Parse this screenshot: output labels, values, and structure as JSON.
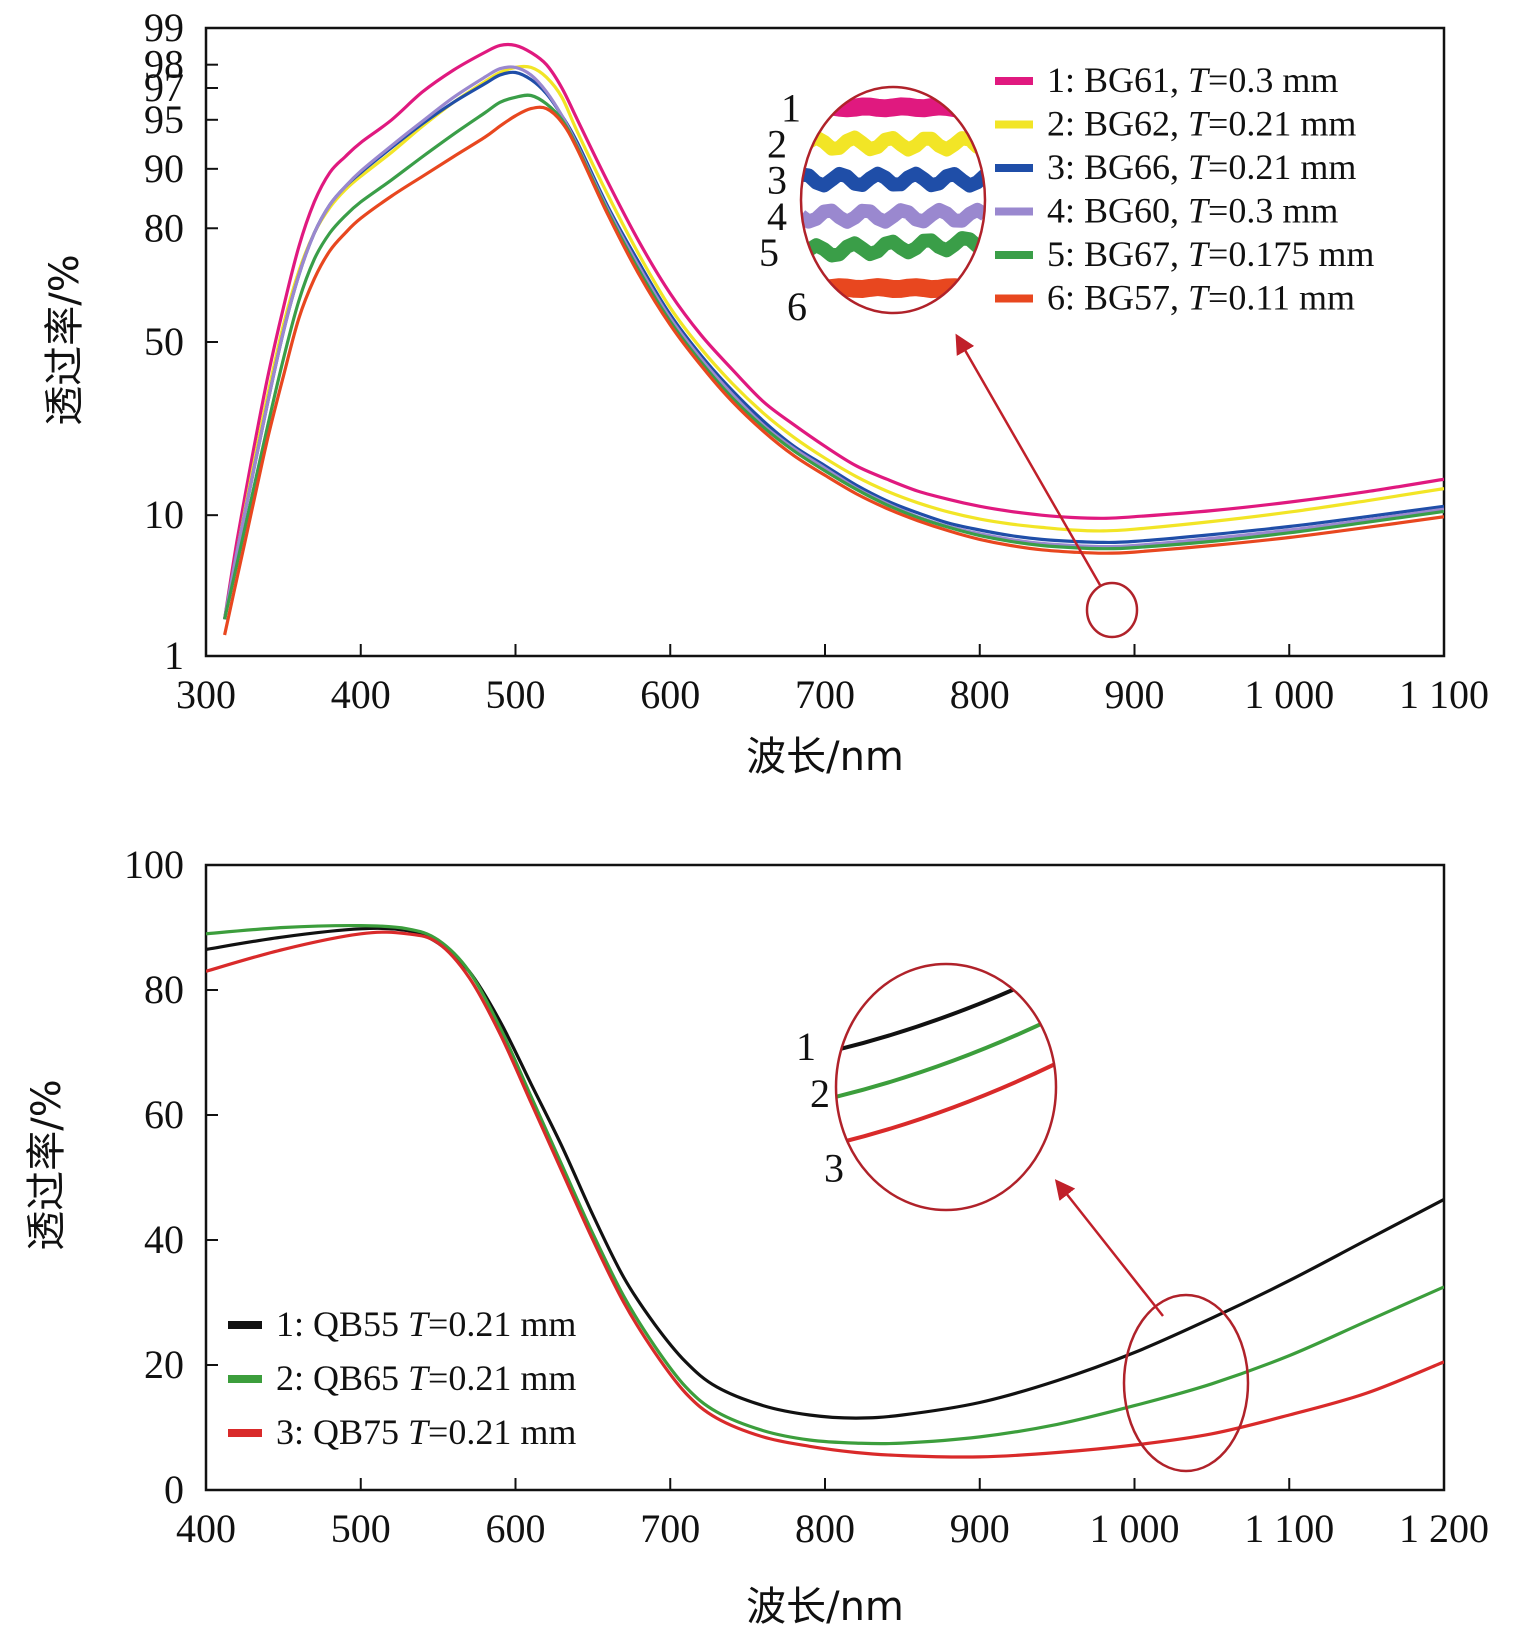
{
  "chart_data": [
    {
      "type": "line",
      "xlabel": "波长/nm",
      "ylabel": "透过率/%",
      "xlim": [
        300,
        1100
      ],
      "xticks": [
        300,
        400,
        500,
        600,
        700,
        800,
        900,
        1000,
        1100
      ],
      "xtick_labels": [
        "300",
        "400",
        "500",
        "600",
        "700",
        "800",
        "900",
        "1 000",
        "1 100"
      ],
      "ylim": [
        1,
        99
      ],
      "y_scale": "probability",
      "yticks": [
        1,
        10,
        50,
        80,
        90,
        95,
        97,
        98,
        99
      ],
      "ytick_labels": [
        "1",
        "10",
        "50",
        "80",
        "90",
        "95",
        "97",
        "98",
        "99"
      ],
      "grid": false,
      "legend_position": "top-right",
      "inset": {
        "type": "magnified-circle",
        "labels": [
          "1",
          "2",
          "3",
          "4",
          "5",
          "6"
        ],
        "source_x": 885,
        "source_y": 8
      },
      "series": [
        {
          "name": "1: BG61, T=0.3 mm",
          "legend_label": {
            "pre": "1: BG61, ",
            "italic": "T",
            "post": "=0.3 mm"
          },
          "color": "#e0197f",
          "x": [
            312,
            320,
            330,
            340,
            350,
            360,
            370,
            380,
            390,
            400,
            420,
            440,
            460,
            480,
            490,
            500,
            510,
            520,
            530,
            540,
            560,
            580,
            600,
            620,
            640,
            660,
            680,
            700,
            720,
            740,
            760,
            780,
            800,
            820,
            840,
            860,
            880,
            900,
            950,
            1000,
            1050,
            1100
          ],
          "y": [
            2,
            7,
            20,
            40,
            60,
            76,
            85,
            89.5,
            91.5,
            93,
            95,
            96.8,
            97.8,
            98.4,
            98.6,
            98.6,
            98.4,
            98,
            97,
            95,
            88,
            77,
            64,
            52,
            42,
            33,
            27,
            22,
            18,
            15.5,
            13.5,
            12.2,
            11.2,
            10.5,
            10,
            9.7,
            9.6,
            9.8,
            10.6,
            11.8,
            13.4,
            15.5
          ]
        },
        {
          "name": "2: BG62, T=0.21 mm",
          "legend_label": {
            "pre": "2: BG62, ",
            "italic": "T",
            "post": "=0.21 mm"
          },
          "color": "#f2e526",
          "x": [
            312,
            320,
            330,
            340,
            350,
            360,
            370,
            380,
            390,
            400,
            420,
            440,
            460,
            480,
            490,
            500,
            510,
            520,
            530,
            540,
            560,
            580,
            600,
            620,
            640,
            660,
            680,
            700,
            720,
            740,
            760,
            780,
            800,
            820,
            840,
            860,
            880,
            900,
            950,
            1000,
            1050,
            1100
          ],
          "y": [
            2,
            6,
            17,
            35,
            55,
            70,
            79,
            84,
            87,
            89,
            92,
            94.5,
            96.2,
            97.3,
            97.7,
            97.9,
            97.9,
            97.5,
            96.5,
            94,
            86,
            74,
            60,
            48,
            38,
            30,
            24,
            19.5,
            16,
            13.5,
            11.7,
            10.4,
            9.5,
            8.9,
            8.5,
            8.2,
            8.1,
            8.3,
            9.2,
            10.4,
            12,
            13.9
          ]
        },
        {
          "name": "3: BG66, T=0.21 mm",
          "legend_label": {
            "pre": "3: BG66, ",
            "italic": "T",
            "post": "=0.21 mm"
          },
          "color": "#1f4ea8",
          "x": [
            312,
            320,
            330,
            340,
            350,
            360,
            370,
            380,
            390,
            400,
            420,
            440,
            460,
            480,
            490,
            500,
            510,
            520,
            530,
            540,
            560,
            580,
            600,
            620,
            640,
            660,
            680,
            700,
            720,
            740,
            760,
            780,
            800,
            820,
            840,
            860,
            880,
            900,
            950,
            1000,
            1050,
            1100
          ],
          "y": [
            2,
            6,
            16,
            33,
            53,
            69,
            79,
            84.5,
            87.5,
            89.5,
            92.5,
            94.7,
            96.2,
            97.2,
            97.6,
            97.7,
            97.4,
            96.7,
            95.3,
            93,
            84,
            72,
            58,
            46,
            36,
            28,
            22,
            18,
            14.5,
            12,
            10.3,
            9,
            8.2,
            7.6,
            7.2,
            7,
            6.9,
            7,
            7.7,
            8.6,
            9.8,
            11.2
          ]
        },
        {
          "name": "4: BG60, T=0.3 mm",
          "legend_label": {
            "pre": "4: BG60, ",
            "italic": "T",
            "post": "=0.3 mm"
          },
          "color": "#9a88cf",
          "x": [
            312,
            320,
            330,
            340,
            350,
            360,
            370,
            380,
            390,
            400,
            420,
            440,
            460,
            480,
            490,
            500,
            510,
            520,
            530,
            540,
            560,
            580,
            600,
            620,
            640,
            660,
            680,
            700,
            720,
            740,
            760,
            780,
            800,
            820,
            840,
            860,
            880,
            900,
            950,
            1000,
            1050,
            1100
          ],
          "y": [
            2,
            6,
            16,
            33,
            53,
            69,
            79,
            84.5,
            87.5,
            89.7,
            92.7,
            94.9,
            96.5,
            97.5,
            97.85,
            97.9,
            97.6,
            96.8,
            95.3,
            92.7,
            83.5,
            71,
            57,
            45,
            35,
            27,
            21.5,
            17.5,
            14,
            11.6,
            9.8,
            8.6,
            7.8,
            7.2,
            6.8,
            6.6,
            6.5,
            6.6,
            7.3,
            8.2,
            9.4,
            10.8
          ]
        },
        {
          "name": "5: BG67, T=0.175 mm",
          "legend_label": {
            "pre": "5: BG67, ",
            "italic": "T",
            "post": "=0.175 mm"
          },
          "color": "#3a9e48",
          "x": [
            312,
            320,
            330,
            340,
            350,
            360,
            370,
            380,
            390,
            400,
            420,
            440,
            460,
            480,
            490,
            500,
            510,
            520,
            530,
            540,
            560,
            580,
            600,
            620,
            640,
            660,
            680,
            700,
            720,
            740,
            760,
            780,
            800,
            820,
            840,
            860,
            880,
            900,
            950,
            1000,
            1050,
            1100
          ],
          "y": [
            2,
            5,
            13,
            27,
            45,
            62,
            73,
            79,
            82.5,
            85,
            88.5,
            91.5,
            93.8,
            95.5,
            96.2,
            96.5,
            96.6,
            96.1,
            95,
            92.5,
            83,
            70,
            56,
            44,
            34,
            26.5,
            21,
            17,
            13.8,
            11.4,
            9.7,
            8.5,
            7.6,
            7,
            6.6,
            6.4,
            6.3,
            6.4,
            7,
            7.9,
            9.1,
            10.5
          ]
        },
        {
          "name": "6: BG57, T=0.11 mm",
          "legend_label": {
            "pre": "6: BG57, ",
            "italic": "T",
            "post": "=0.11 mm"
          },
          "color": "#e8471f",
          "x": [
            312,
            320,
            330,
            340,
            350,
            360,
            370,
            380,
            390,
            400,
            420,
            440,
            460,
            480,
            490,
            500,
            510,
            520,
            530,
            540,
            560,
            580,
            600,
            620,
            640,
            660,
            680,
            700,
            720,
            740,
            760,
            780,
            800,
            820,
            840,
            860,
            880,
            900,
            950,
            1000,
            1050,
            1100
          ],
          "y": [
            1.5,
            4,
            11,
            24,
            40,
            57,
            68,
            75,
            79,
            82,
            86,
            89,
            91.5,
            93.5,
            94.5,
            95.3,
            95.8,
            95.8,
            94.8,
            92.3,
            82.5,
            69,
            55,
            43,
            33,
            25.5,
            20,
            16.2,
            13.1,
            10.9,
            9.3,
            8.1,
            7.2,
            6.6,
            6.2,
            6,
            5.9,
            6,
            6.6,
            7.4,
            8.5,
            9.8
          ]
        }
      ]
    },
    {
      "type": "line",
      "xlabel": "波长/nm",
      "ylabel": "透过率/%",
      "xlim": [
        400,
        1200
      ],
      "xticks": [
        400,
        500,
        600,
        700,
        800,
        900,
        1000,
        1100,
        1200
      ],
      "xtick_labels": [
        "400",
        "500",
        "600",
        "700",
        "800",
        "900",
        "1 000",
        "1 100",
        "1 200"
      ],
      "ylim": [
        0,
        100
      ],
      "y_scale": "linear",
      "yticks": [
        0,
        20,
        40,
        60,
        80,
        100
      ],
      "ytick_labels": [
        "0",
        "20",
        "40",
        "60",
        "80",
        "100"
      ],
      "grid": false,
      "legend_position": "bottom-left",
      "inset": {
        "type": "magnified-circle",
        "labels": [
          "1",
          "2",
          "3"
        ],
        "source_x": 1035,
        "source_y": 17
      },
      "series": [
        {
          "name": "1: QB55 T=0.21 mm",
          "legend_label": {
            "pre": "1: QB55 ",
            "italic": "T",
            "post": "=0.21 mm"
          },
          "color": "#111111",
          "x": [
            400,
            450,
            500,
            530,
            550,
            570,
            590,
            610,
            630,
            650,
            670,
            690,
            710,
            730,
            760,
            790,
            820,
            850,
            900,
            950,
            1000,
            1050,
            1100,
            1150,
            1200
          ],
          "y": [
            86.5,
            88.5,
            89.8,
            89.5,
            87.5,
            83,
            75,
            65,
            55,
            44,
            34,
            26.5,
            20.5,
            16.5,
            13.5,
            12,
            11.5,
            12,
            14,
            17.5,
            22,
            27.5,
            33.5,
            40,
            46.5
          ]
        },
        {
          "name": "2: QB65 T=0.21 mm",
          "legend_label": {
            "pre": "2: QB65 ",
            "italic": "T",
            "post": "=0.21 mm"
          },
          "color": "#3c9e3c",
          "x": [
            400,
            450,
            500,
            530,
            550,
            570,
            590,
            610,
            630,
            650,
            670,
            690,
            710,
            730,
            760,
            790,
            820,
            850,
            900,
            950,
            1000,
            1050,
            1100,
            1150,
            1200
          ],
          "y": [
            89,
            90,
            90.3,
            89.8,
            88,
            83,
            74,
            63,
            52,
            41,
            31,
            23,
            16.5,
            12.5,
            9.5,
            8,
            7.5,
            7.5,
            8.5,
            10.5,
            13.5,
            17,
            21.5,
            27,
            32.5
          ]
        },
        {
          "name": "3: QB75 T=0.21 mm",
          "legend_label": {
            "pre": "3: QB75 ",
            "italic": "T",
            "post": "=0.21 mm"
          },
          "color": "#d92a2a",
          "x": [
            400,
            450,
            500,
            530,
            550,
            570,
            590,
            610,
            630,
            650,
            670,
            690,
            710,
            730,
            760,
            790,
            820,
            850,
            900,
            950,
            1000,
            1050,
            1100,
            1150,
            1200
          ],
          "y": [
            83,
            86.5,
            89,
            89,
            87.5,
            82,
            73,
            62,
            51,
            40,
            30,
            22,
            15.5,
            11.5,
            8.5,
            7,
            6,
            5.5,
            5.3,
            6,
            7.2,
            9,
            12,
            15.5,
            20.5
          ]
        }
      ]
    }
  ]
}
